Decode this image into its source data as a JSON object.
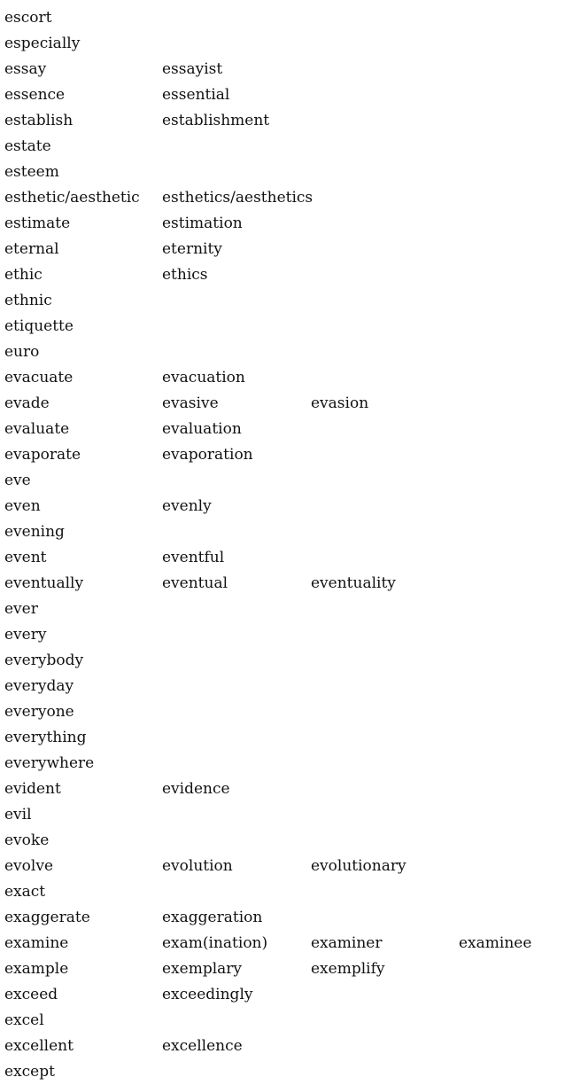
{
  "rows": [
    [
      "escort"
    ],
    [
      "especially"
    ],
    [
      "essay",
      "essayist"
    ],
    [
      "essence",
      "essential"
    ],
    [
      "establish",
      "establishment"
    ],
    [
      "estate"
    ],
    [
      "esteem"
    ],
    [
      "esthetic/aesthetic",
      "esthetics/aesthetics"
    ],
    [
      "estimate",
      "estimation"
    ],
    [
      "eternal",
      "eternity"
    ],
    [
      "ethic",
      "ethics"
    ],
    [
      "ethnic"
    ],
    [
      "etiquette"
    ],
    [
      "euro"
    ],
    [
      "evacuate",
      "evacuation"
    ],
    [
      "evade",
      "evasive",
      "evasion"
    ],
    [
      "evaluate",
      "evaluation"
    ],
    [
      "evaporate",
      "evaporation"
    ],
    [
      "eve"
    ],
    [
      "even",
      "evenly"
    ],
    [
      "evening"
    ],
    [
      "event",
      "eventful"
    ],
    [
      "eventually",
      "eventual",
      "eventuality"
    ],
    [
      "ever"
    ],
    [
      "every"
    ],
    [
      "everybody"
    ],
    [
      "everyday"
    ],
    [
      "everyone"
    ],
    [
      "everything"
    ],
    [
      "everywhere"
    ],
    [
      "evident",
      "evidence"
    ],
    [
      "evil"
    ],
    [
      "evoke"
    ],
    [
      "evolve",
      "evolution",
      "evolutionary"
    ],
    [
      "exact"
    ],
    [
      "exaggerate",
      "exaggeration"
    ],
    [
      "examine",
      "exam(ination)",
      "examiner",
      "examinee"
    ],
    [
      "example",
      "exemplary",
      "exemplify"
    ],
    [
      "exceed",
      "exceedingly"
    ],
    [
      "excel"
    ],
    [
      "excellent",
      "excellence"
    ],
    [
      "except"
    ]
  ]
}
